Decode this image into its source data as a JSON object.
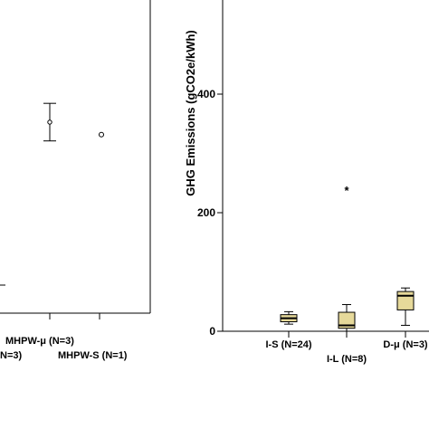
{
  "chart_data": [
    {
      "type": "scatter",
      "panel": "left",
      "x_tick_labels": [
        "N=3)",
        "MHPW-μ (N=3)",
        "MHPW-S (N=1)"
      ],
      "points": [
        {
          "category": "MHPW-μ (N=3)",
          "mean": 0.61,
          "error_low": 0.55,
          "error_high": 0.67
        },
        {
          "category": "MHPW-S (N=1)",
          "value": 0.57
        }
      ],
      "notes": "Left panel cropped; y-axis not visible, values given as fraction of panel height"
    },
    {
      "type": "box",
      "panel": "right",
      "ylabel": "GHG Emissions (gCO2e/kWh)",
      "yticks": [
        0,
        200,
        400
      ],
      "ylim": [
        0,
        560
      ],
      "categories": [
        "I-S (N=24)",
        "I-L (N=8)",
        "D-μ (N=3)"
      ],
      "boxes": [
        {
          "category": "I-S (N=24)",
          "min": 12,
          "q1": 16,
          "median": 22,
          "q3": 28,
          "max": 33,
          "outliers": []
        },
        {
          "category": "I-L (N=8)",
          "min": 0,
          "q1": 5,
          "median": 10,
          "q3": 32,
          "max": 45,
          "outliers": [
            238
          ]
        },
        {
          "category": "D-μ (N=3)",
          "min": 10,
          "q1": 36,
          "median": 60,
          "q3": 67,
          "max": 73,
          "outliers": []
        }
      ],
      "box_color": "#e6d99a",
      "grid": false
    }
  ]
}
